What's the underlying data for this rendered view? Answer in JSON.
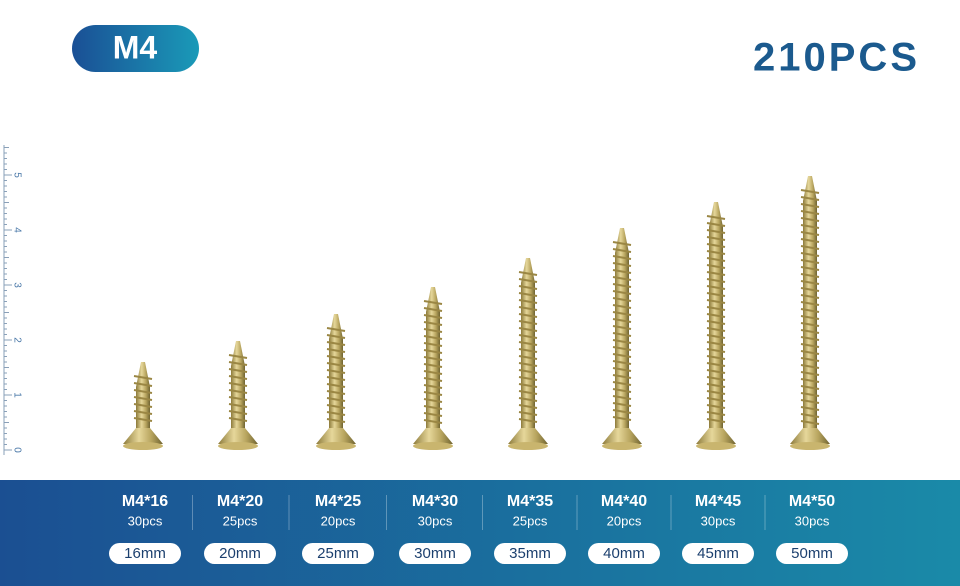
{
  "badge": "M4",
  "total": "210PCS",
  "ruler": {
    "labels": [
      0,
      1,
      2,
      3,
      4,
      5
    ]
  },
  "items": [
    {
      "name": "M4*16",
      "count": "30pcs",
      "length": "16mm"
    },
    {
      "name": "M4*20",
      "count": "25pcs",
      "length": "20mm"
    },
    {
      "name": "M4*25",
      "count": "20pcs",
      "length": "25mm"
    },
    {
      "name": "M4*30",
      "count": "30pcs",
      "length": "30mm"
    },
    {
      "name": "M4*35",
      "count": "25pcs",
      "length": "35mm"
    },
    {
      "name": "M4*40",
      "count": "20pcs",
      "length": "40mm"
    },
    {
      "name": "M4*45",
      "count": "30pcs",
      "length": "45mm"
    },
    {
      "name": "M4*50",
      "count": "30pcs",
      "length": "50mm"
    }
  ]
}
